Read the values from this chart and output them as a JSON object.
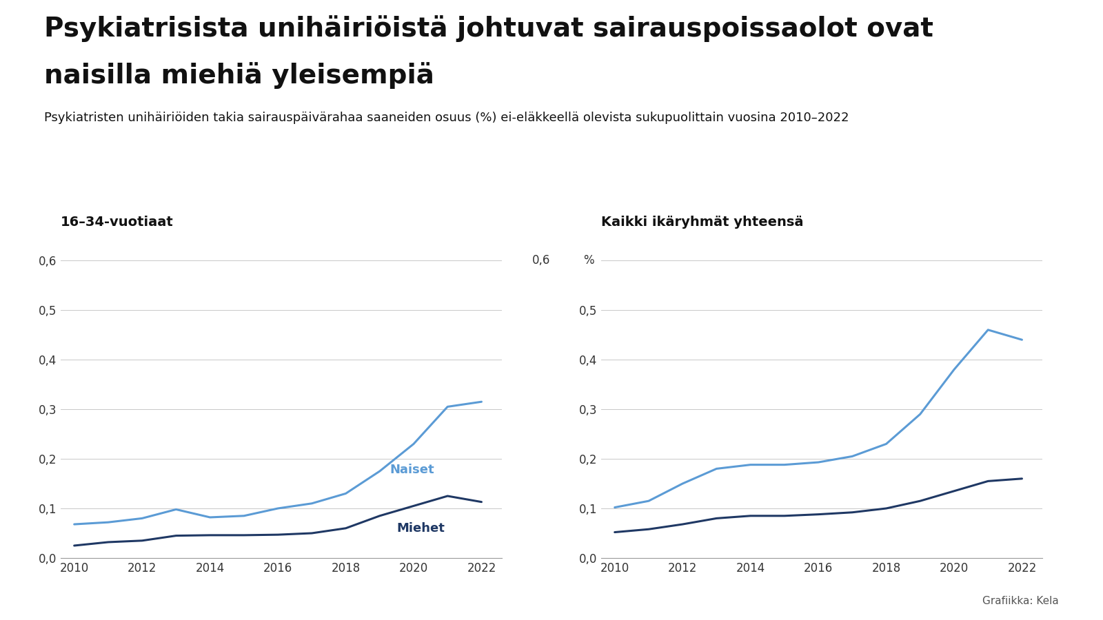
{
  "title_line1": "Psykiatrisista unihäiriöistä johtuvat sairauspoissaolot ovat",
  "title_line2": "naisilla miehiä yleisempiä",
  "subtitle": "Psykiatristen unihäiriöiden takia sairauspäivärahaa saaneiden osuus (%) ei-eläkkeellä olevista sukupuolittain vuosina 2010–2022",
  "left_title": "16–34-vuotiaat",
  "right_title": "Kaikki ikäryhmät yhteensä",
  "years": [
    2010,
    2011,
    2012,
    2013,
    2014,
    2015,
    2016,
    2017,
    2018,
    2019,
    2020,
    2021,
    2022
  ],
  "left_naiset": [
    0.068,
    0.072,
    0.08,
    0.098,
    0.082,
    0.085,
    0.1,
    0.11,
    0.13,
    0.175,
    0.23,
    0.305,
    0.315
  ],
  "left_miehet": [
    0.025,
    0.032,
    0.035,
    0.045,
    0.046,
    0.046,
    0.047,
    0.05,
    0.06,
    0.085,
    0.105,
    0.125,
    0.113
  ],
  "right_naiset": [
    0.102,
    0.115,
    0.15,
    0.18,
    0.188,
    0.188,
    0.193,
    0.205,
    0.23,
    0.29,
    0.38,
    0.46,
    0.44
  ],
  "right_miehet": [
    0.052,
    0.058,
    0.068,
    0.08,
    0.085,
    0.085,
    0.088,
    0.092,
    0.1,
    0.115,
    0.135,
    0.155,
    0.16
  ],
  "color_naiset": "#5B9BD5",
  "color_miehet": "#1F3864",
  "background_color": "#FFFFFF",
  "ylim": [
    0.0,
    0.65
  ],
  "yticks": [
    0.0,
    0.1,
    0.2,
    0.3,
    0.4,
    0.5,
    0.6
  ],
  "ytick_labels_left": [
    "0,0",
    "0,1",
    "0,2",
    "0,3",
    "0,4",
    "0,5",
    "0,6"
  ],
  "ytick_labels_right": [
    "0,0",
    "0,1",
    "0,2",
    "0,3",
    "0,4",
    "0,5",
    ""
  ],
  "xticks": [
    2010,
    2012,
    2014,
    2016,
    2018,
    2020,
    2022
  ],
  "footer": "Grafiikka: Kela",
  "label_naiset": "Naiset",
  "label_miehet": "Miehet",
  "title_fontsize": 28,
  "subtitle_fontsize": 13,
  "tick_fontsize": 12,
  "label_fontsize": 13,
  "panel_title_fontsize": 14
}
